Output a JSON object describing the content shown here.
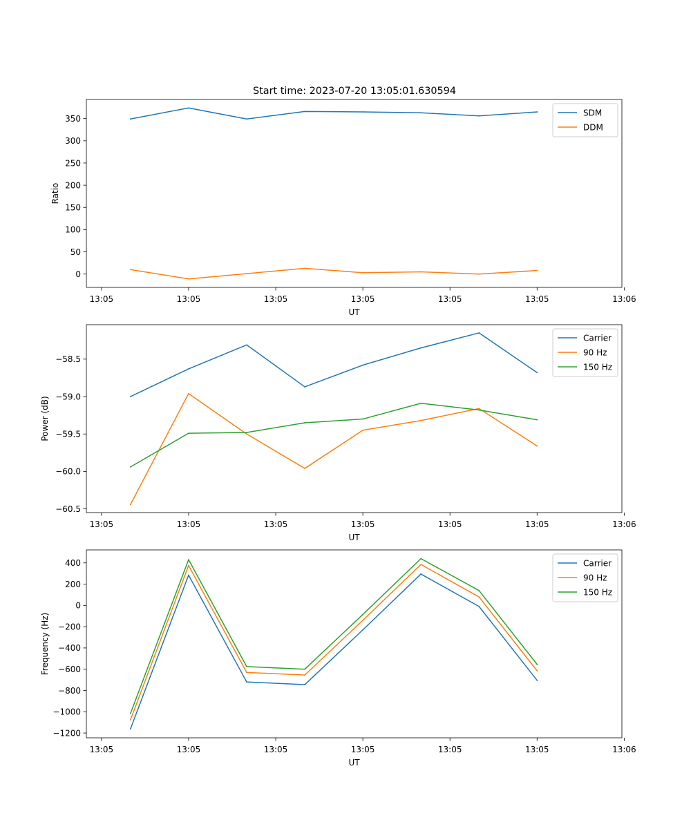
{
  "figure_title": "Start time: 2023-07-20 13:05:01.630594",
  "chart_data": [
    {
      "type": "line",
      "title": "Start time: 2023-07-20 13:05:01.630594",
      "xlabel": "UT",
      "ylabel": "Ratio",
      "x": [
        1,
        2,
        3,
        4,
        5,
        6,
        7,
        8
      ],
      "xlim": [
        0.24,
        9.46
      ],
      "xticks": [
        0.5,
        2.0,
        3.5,
        5.0,
        6.5,
        8.0,
        9.5
      ],
      "xtick_labels": [
        "13:05",
        "13:05",
        "13:05",
        "13:05",
        "13:05",
        "13:05",
        "13:06"
      ],
      "ylim": [
        -30,
        393
      ],
      "yticks": [
        0,
        50,
        100,
        150,
        200,
        250,
        300,
        350
      ],
      "ytick_labels": [
        "0",
        "50",
        "100",
        "150",
        "200",
        "250",
        "300",
        "350"
      ],
      "legend": "top-right",
      "series": [
        {
          "name": "SDM",
          "color": "#1f77b4",
          "values": [
            349,
            374,
            349,
            366,
            365,
            363,
            356,
            365
          ]
        },
        {
          "name": "DDM",
          "color": "#ff7f0e",
          "values": [
            10,
            -11,
            1,
            13,
            3,
            5,
            0,
            8
          ]
        }
      ]
    },
    {
      "type": "line",
      "title": "",
      "xlabel": "UT",
      "ylabel": "Power (dB)",
      "x": [
        1,
        2,
        3,
        4,
        5,
        6,
        7,
        8
      ],
      "xlim": [
        0.24,
        9.46
      ],
      "xticks": [
        0.5,
        2.0,
        3.5,
        5.0,
        6.5,
        8.0,
        9.5
      ],
      "xtick_labels": [
        "13:05",
        "13:05",
        "13:05",
        "13:05",
        "13:05",
        "13:05",
        "13:06"
      ],
      "ylim": [
        -60.55,
        -58.04
      ],
      "yticks": [
        -60.5,
        -60.0,
        -59.5,
        -59.0,
        -58.5
      ],
      "ytick_labels": [
        "−60.5",
        "−60.0",
        "−59.5",
        "−59.0",
        "−58.5"
      ],
      "legend": "top-right",
      "series": [
        {
          "name": "Carrier",
          "color": "#1f77b4",
          "values": [
            -59.0,
            -58.63,
            -58.31,
            -58.87,
            -58.58,
            -58.35,
            -58.15,
            -58.68
          ]
        },
        {
          "name": "90 Hz",
          "color": "#ff7f0e",
          "values": [
            -60.44,
            -58.96,
            -59.5,
            -59.96,
            -59.45,
            -59.32,
            -59.16,
            -59.66
          ]
        },
        {
          "name": "150 Hz",
          "color": "#2ca02c",
          "values": [
            -59.94,
            -59.49,
            -59.48,
            -59.35,
            -59.3,
            -59.09,
            -59.18,
            -59.31
          ]
        }
      ]
    },
    {
      "type": "line",
      "title": "",
      "xlabel": "UT",
      "ylabel": "Frequency (Hz)",
      "x": [
        1,
        2,
        3,
        4,
        5,
        6,
        7,
        8
      ],
      "xlim": [
        0.24,
        9.46
      ],
      "xticks": [
        0.5,
        2.0,
        3.5,
        5.0,
        6.5,
        8.0,
        9.5
      ],
      "xtick_labels": [
        "13:05",
        "13:05",
        "13:05",
        "13:05",
        "13:05",
        "13:05",
        "13:06"
      ],
      "ylim": [
        -1245,
        522
      ],
      "yticks": [
        -1200,
        -1000,
        -800,
        -600,
        -400,
        -200,
        0,
        200,
        400
      ],
      "ytick_labels": [
        "−1200",
        "−1000",
        "−800",
        "−600",
        "−400",
        "−200",
        "0",
        "200",
        "400"
      ],
      "legend": "top-right",
      "series": [
        {
          "name": "Carrier",
          "color": "#1f77b4",
          "values": [
            -1160,
            285,
            -720,
            -745,
            -230,
            295,
            -10,
            -705
          ]
        },
        {
          "name": "90 Hz",
          "color": "#ff7f0e",
          "values": [
            -1075,
            375,
            -630,
            -655,
            -140,
            385,
            80,
            -615
          ]
        },
        {
          "name": "150 Hz",
          "color": "#2ca02c",
          "values": [
            -1015,
            430,
            -575,
            -600,
            -85,
            440,
            140,
            -555
          ]
        }
      ]
    }
  ]
}
